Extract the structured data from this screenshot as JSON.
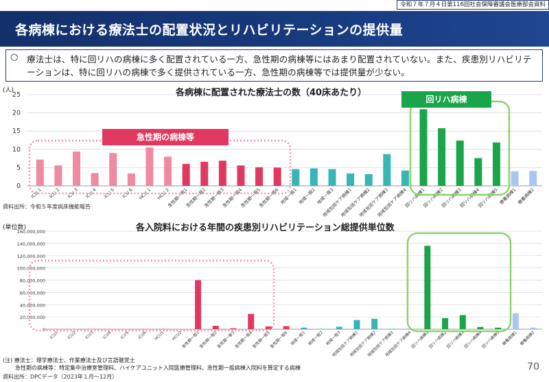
{
  "header": {
    "meta": "令和７年７月４日第116回社会保障審議会医療部会資料",
    "title": "各病棟における療法士の配置状況とリハビリテーションの提供量"
  },
  "summary": {
    "bullet": "○",
    "text": "療法士は、特に回リハの病棟に多く配置されている一方、急性期の病棟等にはあまり配置されていない。また、疾患別リハビリテーションは、特に回リハの病棟で多く提供されている一方、急性期の病棟等では提供量が少ない。"
  },
  "tags": {
    "acute": "急性期の病棟等",
    "rehab": "回リハ病棟"
  },
  "notes": {
    "source1": "資料出所：令和５年度病床機能報告",
    "note_line1": "(注) 療法士：理学療法士、作業療法士及び言語聴覚士",
    "note_line2": "急性期の病棟等：特定集中治療室管理料、ハイケアユニット入院医療管理料、急性期一般病棟入院料を算定する病棟",
    "source2": "資料出所：DPCデータ（2023年１月～12月）",
    "page": "70"
  },
  "colors": {
    "icu": "#f08aa0",
    "acute": "#e0395f",
    "community": "#3ab5b5",
    "rehab": "#1aa54b",
    "ltc": "#a9c6ee",
    "acute_frame": "#f28fa8",
    "rehab_frame": "#8dd36b"
  },
  "chart_data": [
    {
      "type": "bar",
      "title": "各病棟に配置された療法士の数（40床あたり）",
      "ylabel": "(人)",
      "ylim": [
        0,
        25
      ],
      "yticks": [
        0,
        5,
        10,
        15,
        20,
        25
      ],
      "ytick_labels": [
        "0",
        "5",
        "10",
        "15",
        "20",
        "25"
      ],
      "categories": [
        "ICU 1",
        "ICU 2",
        "ICU 3",
        "ICU 4",
        "ICU 5",
        "ICU 6",
        "HCU 1",
        "HCU 2",
        "急性期一般1",
        "急性期一般2",
        "急性期一般3",
        "急性期一般4",
        "急性期一般5",
        "急性期一般6",
        "地域一般1",
        "地域一般2",
        "地域一般3",
        "地域包括ケア病棟1",
        "地域包括ケア病棟2",
        "地域包括ケア病棟3",
        "地域包括ケア病棟4",
        "回リハ病棟1",
        "回リハ病棟2",
        "回リハ病棟3",
        "回リハ病棟4",
        "回リハ病棟5",
        "療養病棟1",
        "療養病棟2"
      ],
      "groups": [
        "icu",
        "icu",
        "icu",
        "icu",
        "icu",
        "icu",
        "icu",
        "icu",
        "acute",
        "acute",
        "acute",
        "acute",
        "acute",
        "acute",
        "community",
        "community",
        "community",
        "community",
        "community",
        "community",
        "community",
        "rehab",
        "rehab",
        "rehab",
        "rehab",
        "rehab",
        "ltc",
        "ltc"
      ],
      "values": [
        7.2,
        5.6,
        9.4,
        3.5,
        9.0,
        3.4,
        10.5,
        8.0,
        6.0,
        6.6,
        6.9,
        5.6,
        5.1,
        5.0,
        4.6,
        4.8,
        4.6,
        3.4,
        3.2,
        8.7,
        4.2,
        21.0,
        15.8,
        12.4,
        7.6,
        11.9,
        4.0,
        4.1
      ]
    },
    {
      "type": "bar",
      "title": "各入院料における年間の疾患別リハビリテーション総提供単位数",
      "ylabel": "(単位数)",
      "ylim": [
        0,
        160000000
      ],
      "yticks": [
        0,
        20000000,
        40000000,
        60000000,
        80000000,
        100000000,
        120000000,
        140000000,
        160000000
      ],
      "ytick_labels": [
        "0",
        "20,000,000",
        "40,000,000",
        "60,000,000",
        "80,000,000",
        "100,000,000",
        "120,000,000",
        "140,000,000",
        "160,000,000"
      ],
      "categories": [
        "ICU1",
        "ICU2",
        "ICU3",
        "ICU4",
        "ICU5",
        "ICU6",
        "HCU1",
        "HCU2",
        "急性期一般1",
        "急性期一般2",
        "急性期一般3",
        "急性期一般4",
        "急性期一般5",
        "急性期一般6",
        "地域一般1",
        "地域一般2",
        "地域一般3",
        "地域包括ケア病棟1",
        "地域包括ケア病棟2",
        "地域包括ケア病棟3",
        "地域包括ケア病棟4",
        "回リハ病棟1",
        "回リハ病棟2",
        "回リハ病棟3",
        "回リハ病棟4",
        "回リハ病棟5",
        "療養病棟1",
        "療養病棟2"
      ],
      "groups": [
        "icu",
        "icu",
        "icu",
        "icu",
        "icu",
        "icu",
        "icu",
        "icu",
        "acute",
        "acute",
        "acute",
        "acute",
        "acute",
        "acute",
        "community",
        "community",
        "community",
        "community",
        "community",
        "community",
        "community",
        "rehab",
        "rehab",
        "rehab",
        "rehab",
        "rehab",
        "ltc",
        "ltc"
      ],
      "values": [
        300000,
        200000,
        400000,
        100000,
        300000,
        100000,
        800000,
        500000,
        80000000,
        5500000,
        1500000,
        25000000,
        4500000,
        5000000,
        2500000,
        500000,
        4000000,
        15000000,
        17000000,
        200000,
        100000,
        136000000,
        18000000,
        23000000,
        3500000,
        2500000,
        26000000,
        2500000
      ]
    }
  ]
}
